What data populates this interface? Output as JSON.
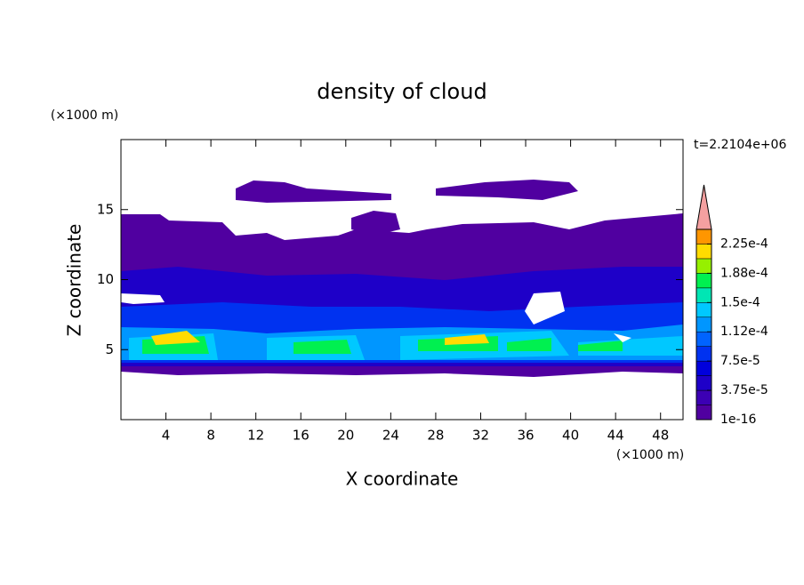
{
  "chart_data": {
    "type": "contour",
    "title": "density of cloud",
    "x_label": "X coordinate",
    "y_label": "Z coordinate",
    "x_unit": "(×1000 m)",
    "y_unit": "(×1000 m)",
    "annotation": "t=2.2104e+06",
    "xlim": [
      0,
      50
    ],
    "ylim": [
      0,
      20
    ],
    "xticks": [
      4,
      8,
      12,
      16,
      20,
      24,
      28,
      32,
      36,
      40,
      44,
      48
    ],
    "yticks": [
      5,
      10,
      15
    ],
    "colorbar": {
      "lim": [
        0,
        0.00024375
      ],
      "colors": [
        "#5000a0",
        "#3c00b4",
        "#1e00c8",
        "#0000dc",
        "#0032f0",
        "#0064ff",
        "#0096ff",
        "#00c8ff",
        "#00e6b4",
        "#00f050",
        "#96f000",
        "#ffdc00",
        "#ff9600"
      ],
      "extend_color": "#f4a0a0",
      "ticks": [
        {
          "value": 1e-16,
          "label": "1e-16"
        },
        {
          "value": 3.75e-05,
          "label": "3.75e-5"
        },
        {
          "value": 7.5e-05,
          "label": "7.5e-5"
        },
        {
          "value": 0.0001125,
          "label": "1.12e-4"
        },
        {
          "value": 0.00015,
          "label": "1.5e-4"
        },
        {
          "value": 0.0001875,
          "label": "1.88e-4"
        },
        {
          "value": 0.000225,
          "label": "2.25e-4"
        }
      ]
    }
  }
}
